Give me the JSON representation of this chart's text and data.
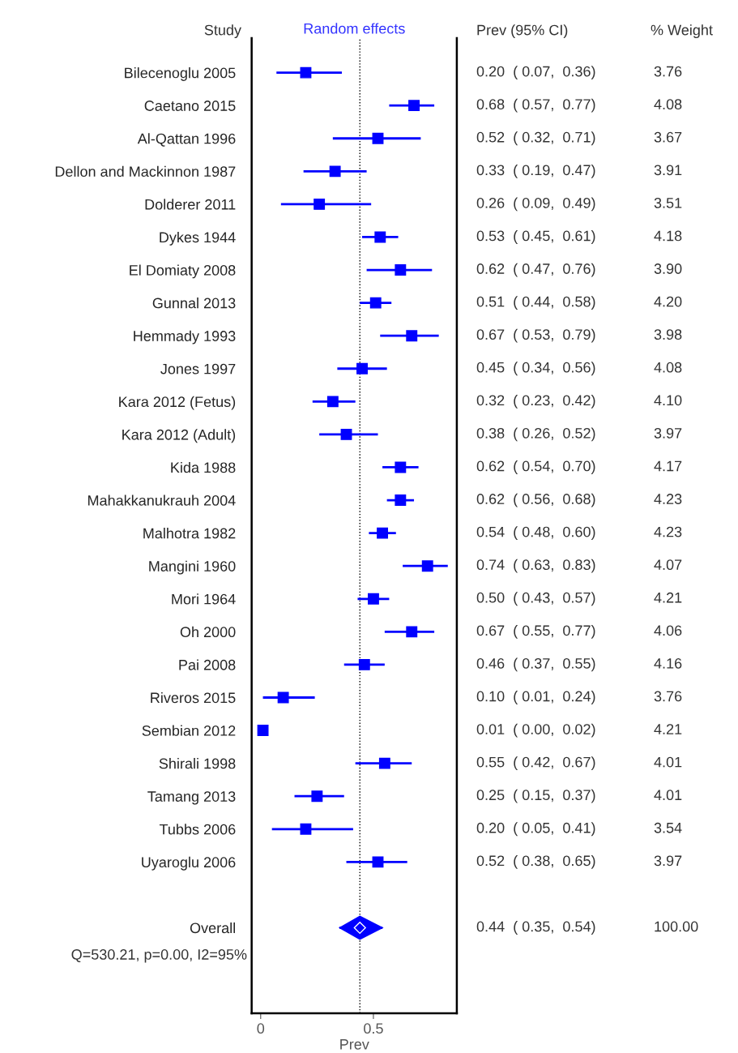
{
  "chart_data": {
    "type": "scatter",
    "orientation": "horizontal",
    "title": "Random effects",
    "xlabel": "Prev",
    "categories": [
      "Bilecenoglu 2005",
      "Caetano 2015",
      "Al-Qattan 1996",
      "Dellon and Mackinnon 1987",
      "Dolderer 2011",
      "Dykes 1944",
      "El Domiaty 2008",
      "Gunnal 2013",
      "Hemmady 1993",
      "Jones 1997",
      "Kara 2012 (Fetus)",
      "Kara 2012 (Adult)",
      "Kida 1988",
      "Mahakkanukrauh 2004",
      "Malhotra 1982",
      "Mangini 1960",
      "Mori 1964",
      "Oh 2000",
      "Pai 2008",
      "Riveros 2015",
      "Sembian 2012",
      "Shirali 1998",
      "Tamang 2013",
      "Tubbs 2006",
      "Uyaroglu 2006",
      null,
      "Overall"
    ],
    "series": [
      {
        "color": "#0000ff",
        "marker": "square",
        "values": [
          0.2,
          0.68,
          0.52,
          0.33,
          0.26,
          0.53,
          0.62,
          0.51,
          0.67,
          0.45,
          0.32,
          0.38,
          0.62,
          0.62,
          0.54,
          0.74,
          0.5,
          0.67,
          0.46,
          0.1,
          0.01,
          0.55,
          0.25,
          0.2,
          0.52,
          null,
          null
        ],
        "errors": [
          [
            0.07,
            0.36
          ],
          [
            0.57,
            0.77
          ],
          [
            0.32,
            0.71
          ],
          [
            0.19,
            0.47
          ],
          [
            0.09,
            0.49
          ],
          [
            0.45,
            0.61
          ],
          [
            0.47,
            0.76
          ],
          [
            0.44,
            0.58
          ],
          [
            0.53,
            0.79
          ],
          [
            0.34,
            0.56
          ],
          [
            0.23,
            0.42
          ],
          [
            0.26,
            0.52
          ],
          [
            0.54,
            0.7
          ],
          [
            0.56,
            0.68
          ],
          [
            0.48,
            0.6
          ],
          [
            0.63,
            0.83
          ],
          [
            0.43,
            0.57
          ],
          [
            0.55,
            0.77
          ],
          [
            0.37,
            0.55
          ],
          [
            0.01,
            0.24
          ],
          null,
          [
            0.42,
            0.67
          ],
          [
            0.15,
            0.37
          ],
          [
            0.05,
            0.41
          ],
          [
            0.38,
            0.65
          ],
          null,
          null
        ],
        "value_labels": [
          "0.20  ( 0.07,  0.36)\t3.76",
          "0.68  ( 0.57,  0.77)\t4.08",
          "0.52  ( 0.32,  0.71)\t3.67",
          "0.33  ( 0.19,  0.47)\t3.91",
          "0.26  ( 0.09,  0.49)\t3.51",
          "0.53  ( 0.45,  0.61)\t4.18",
          "0.62  ( 0.47,  0.76)\t3.90",
          "0.51  ( 0.44,  0.58)\t4.20",
          "0.67  ( 0.53,  0.79)\t3.98",
          "0.45  ( 0.34,  0.56)\t4.08",
          "0.32  ( 0.23,  0.42)\t4.10",
          "0.38  ( 0.26,  0.52)\t3.97",
          "0.62  ( 0.54,  0.70)\t4.17",
          "0.62  ( 0.56,  0.68)\t4.23",
          "0.54  ( 0.48,  0.60)\t4.23",
          "0.74  ( 0.63,  0.83)\t4.07",
          "0.50  ( 0.43,  0.57)\t4.21",
          "0.67  ( 0.55,  0.77)\t4.06",
          "0.46  ( 0.37,  0.55)\t4.16",
          "0.10  ( 0.01,  0.24)\t3.76",
          "0.01  ( 0.00,  0.02)\t4.21",
          "0.55  ( 0.42,  0.67)\t4.01",
          "0.25  ( 0.15,  0.37)\t4.01",
          "0.20  ( 0.05,  0.41)\t3.54",
          "0.52  ( 0.38,  0.65)\t3.97",
          null,
          null
        ]
      },
      {
        "color": "#0000ff",
        "marker": "diamond",
        "values": [
          null,
          null,
          null,
          null,
          null,
          null,
          null,
          null,
          null,
          null,
          null,
          null,
          null,
          null,
          null,
          null,
          null,
          null,
          null,
          null,
          null,
          null,
          null,
          null,
          null,
          null,
          0.44
        ],
        "errors": [
          null,
          null,
          null,
          null,
          null,
          null,
          null,
          null,
          null,
          null,
          null,
          null,
          null,
          null,
          null,
          null,
          null,
          null,
          null,
          null,
          null,
          null,
          null,
          null,
          null,
          null,
          [
            0.35,
            0.54
          ]
        ],
        "value_labels": [
          null,
          null,
          null,
          null,
          null,
          null,
          null,
          null,
          null,
          null,
          null,
          null,
          null,
          null,
          null,
          null,
          null,
          null,
          null,
          null,
          null,
          null,
          null,
          null,
          null,
          null,
          "0.44  ( 0.35,  0.54)\t100.00"
        ]
      }
    ],
    "ref_lines": [
      {
        "axis": "x",
        "value": 0.44,
        "color": "#000000",
        "line_style": "dotted"
      }
    ],
    "annotations": [
      "Study",
      "Prev (95% CI)",
      "% Weight",
      "Q=530.21, p=0.00, I2=95%"
    ],
    "xlim": [
      -0.04,
      0.87
    ],
    "xticks": [
      0,
      0.5
    ],
    "grid": false,
    "legend": false
  }
}
